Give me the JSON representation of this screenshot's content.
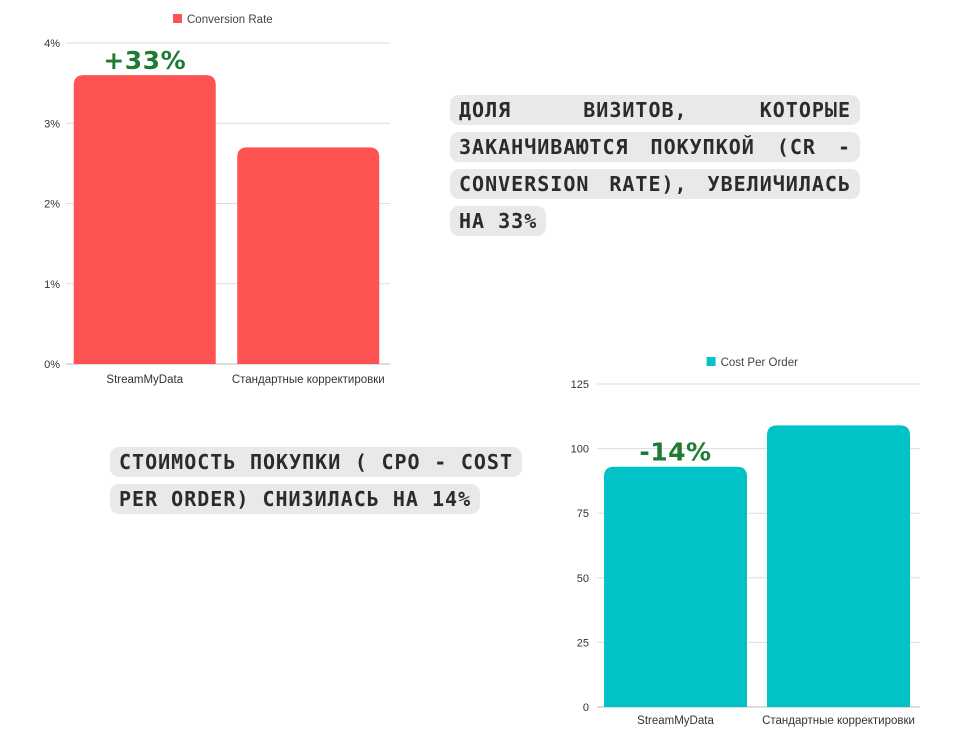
{
  "chart_data": [
    {
      "type": "bar",
      "legend": "Conversion Rate",
      "legend_position": "top",
      "color": "#ff5252",
      "categories": [
        "StreamMyData",
        "Стандартные корректировки"
      ],
      "values": [
        3.6,
        2.7
      ],
      "y_ticks": [
        "0%",
        "1%",
        "2%",
        "3%",
        "4%"
      ],
      "ylim": [
        0,
        4
      ],
      "grid": true,
      "annotation": {
        "text": "+33%",
        "category": "StreamMyData"
      }
    },
    {
      "type": "bar",
      "legend": "Cost Per Order",
      "legend_position": "top",
      "color": "#00c2c7",
      "categories": [
        "StreamMyData",
        "Стандартные корректировки"
      ],
      "values": [
        93,
        109
      ],
      "y_ticks": [
        "0",
        "25",
        "50",
        "75",
        "100",
        "125"
      ],
      "ylim": [
        0,
        125
      ],
      "grid": true,
      "annotation": {
        "text": "-14%",
        "category": "StreamMyData"
      }
    }
  ],
  "notes": {
    "cr": "Доля визитов, которые заканчиваются покупкой (CR - Conversion rate), увеличилась на 33%",
    "cpo": "Стоимость покупки ( CPO - Cost per order) снизилась на 14%"
  }
}
